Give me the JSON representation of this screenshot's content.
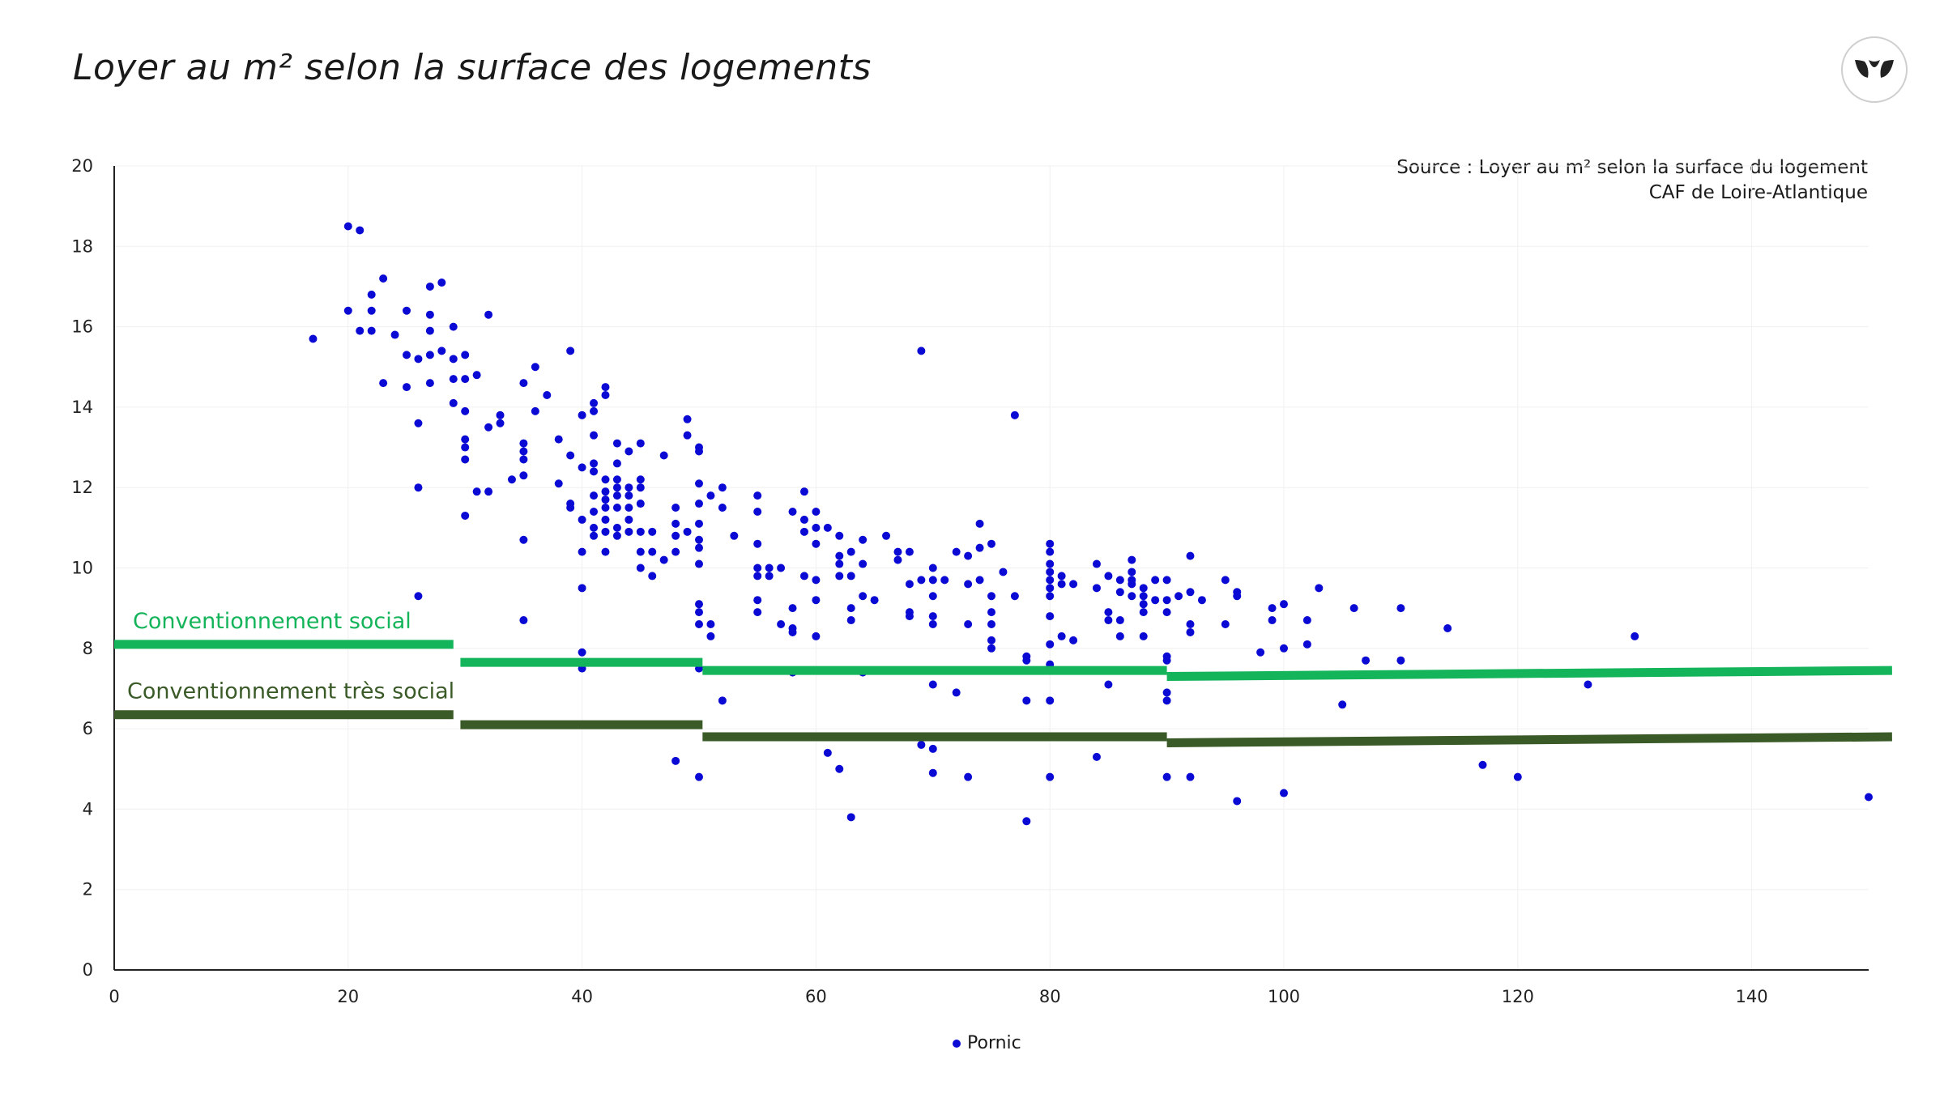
{
  "title": "Loyer au m² selon la surface des logements",
  "source_line1": "Source : Loyer au m² selon la surface du logement",
  "source_line2": "CAF de Loire-Atlantique",
  "logo_icon": "leaf-logo-icon",
  "colors": {
    "points": "#0a0ad4",
    "social": "#14b45a",
    "tres_social": "#3a5a27",
    "axis": "#222222",
    "grid": "#f0f0f0"
  },
  "chart_data": {
    "type": "scatter",
    "xlim": [
      0,
      150
    ],
    "ylim": [
      0,
      20
    ],
    "x_ticks": [
      0,
      20,
      40,
      60,
      80,
      100,
      120,
      140
    ],
    "y_ticks": [
      0,
      2,
      4,
      6,
      8,
      10,
      12,
      14,
      16,
      18,
      20
    ],
    "grid": true,
    "legend_position": "bottom-center",
    "series": [
      {
        "name": "Pornic",
        "type": "scatter",
        "points": [
          [
            17,
            15.7
          ],
          [
            20,
            18.5
          ],
          [
            21,
            18.4
          ],
          [
            20,
            16.4
          ],
          [
            21,
            15.9
          ],
          [
            22,
            16.8
          ],
          [
            22,
            16.4
          ],
          [
            22,
            15.9
          ],
          [
            23,
            17.2
          ],
          [
            23,
            14.6
          ],
          [
            24,
            15.8
          ],
          [
            25,
            16.4
          ],
          [
            25,
            15.3
          ],
          [
            25,
            14.5
          ],
          [
            26,
            15.2
          ],
          [
            26,
            13.6
          ],
          [
            26,
            12.0
          ],
          [
            26,
            9.3
          ],
          [
            27,
            17.0
          ],
          [
            27,
            16.3
          ],
          [
            27,
            15.9
          ],
          [
            27,
            15.3
          ],
          [
            27,
            14.6
          ],
          [
            28,
            17.1
          ],
          [
            28,
            15.4
          ],
          [
            29,
            16.0
          ],
          [
            29,
            15.2
          ],
          [
            29,
            14.7
          ],
          [
            29,
            14.1
          ],
          [
            30,
            15.3
          ],
          [
            30,
            14.7
          ],
          [
            30,
            13.9
          ],
          [
            30,
            13.2
          ],
          [
            30,
            13.0
          ],
          [
            30,
            12.7
          ],
          [
            30,
            11.3
          ],
          [
            31,
            14.8
          ],
          [
            31,
            11.9
          ],
          [
            32,
            16.3
          ],
          [
            32,
            13.5
          ],
          [
            32,
            11.9
          ],
          [
            33,
            13.8
          ],
          [
            33,
            13.6
          ],
          [
            34,
            12.2
          ],
          [
            35,
            14.6
          ],
          [
            35,
            13.1
          ],
          [
            35,
            12.9
          ],
          [
            35,
            12.3
          ],
          [
            35,
            12.7
          ],
          [
            35,
            10.7
          ],
          [
            35,
            8.7
          ],
          [
            36,
            15.0
          ],
          [
            36,
            13.9
          ],
          [
            37,
            14.3
          ],
          [
            38,
            13.2
          ],
          [
            38,
            12.1
          ],
          [
            39,
            15.4
          ],
          [
            39,
            12.8
          ],
          [
            39,
            11.6
          ],
          [
            39,
            11.5
          ],
          [
            40,
            13.8
          ],
          [
            40,
            12.5
          ],
          [
            40,
            11.2
          ],
          [
            40,
            10.4
          ],
          [
            40,
            9.5
          ],
          [
            40,
            7.9
          ],
          [
            40,
            7.5
          ],
          [
            41,
            14.1
          ],
          [
            41,
            13.9
          ],
          [
            41,
            13.3
          ],
          [
            41,
            12.6
          ],
          [
            41,
            12.4
          ],
          [
            41,
            11.8
          ],
          [
            41,
            11.4
          ],
          [
            41,
            11.0
          ],
          [
            41,
            10.8
          ],
          [
            42,
            14.5
          ],
          [
            42,
            14.3
          ],
          [
            42,
            12.2
          ],
          [
            42,
            11.9
          ],
          [
            42,
            11.7
          ],
          [
            42,
            11.5
          ],
          [
            42,
            11.2
          ],
          [
            42,
            10.9
          ],
          [
            42,
            10.4
          ],
          [
            43,
            13.1
          ],
          [
            43,
            12.6
          ],
          [
            43,
            12.2
          ],
          [
            43,
            12.0
          ],
          [
            43,
            11.8
          ],
          [
            43,
            11.5
          ],
          [
            43,
            11.0
          ],
          [
            43,
            10.8
          ],
          [
            44,
            12.9
          ],
          [
            44,
            12.0
          ],
          [
            44,
            11.8
          ],
          [
            44,
            11.5
          ],
          [
            44,
            11.2
          ],
          [
            44,
            10.9
          ],
          [
            45,
            13.1
          ],
          [
            45,
            12.2
          ],
          [
            45,
            12.0
          ],
          [
            45,
            11.6
          ],
          [
            45,
            10.9
          ],
          [
            45,
            10.4
          ],
          [
            45,
            10.0
          ],
          [
            46,
            10.9
          ],
          [
            46,
            10.4
          ],
          [
            46,
            9.8
          ],
          [
            47,
            12.8
          ],
          [
            47,
            10.2
          ],
          [
            48,
            11.5
          ],
          [
            48,
            11.1
          ],
          [
            48,
            10.8
          ],
          [
            48,
            10.4
          ],
          [
            48,
            5.2
          ],
          [
            49,
            13.7
          ],
          [
            49,
            13.3
          ],
          [
            49,
            10.9
          ],
          [
            50,
            13.0
          ],
          [
            50,
            12.9
          ],
          [
            50,
            12.1
          ],
          [
            50,
            11.6
          ],
          [
            50,
            11.1
          ],
          [
            50,
            10.7
          ],
          [
            50,
            10.5
          ],
          [
            50,
            10.1
          ],
          [
            50,
            9.1
          ],
          [
            50,
            8.9
          ],
          [
            50,
            8.6
          ],
          [
            50,
            7.5
          ],
          [
            50,
            4.8
          ],
          [
            51,
            11.8
          ],
          [
            51,
            8.6
          ],
          [
            51,
            8.3
          ],
          [
            52,
            12.0
          ],
          [
            52,
            11.5
          ],
          [
            52,
            6.7
          ],
          [
            53,
            10.8
          ],
          [
            55,
            11.8
          ],
          [
            55,
            11.4
          ],
          [
            55,
            10.6
          ],
          [
            55,
            10.0
          ],
          [
            55,
            9.8
          ],
          [
            55,
            9.2
          ],
          [
            55,
            8.9
          ],
          [
            56,
            10.0
          ],
          [
            56,
            9.8
          ],
          [
            57,
            10.0
          ],
          [
            57,
            8.6
          ],
          [
            58,
            11.4
          ],
          [
            58,
            9.0
          ],
          [
            58,
            8.5
          ],
          [
            58,
            8.4
          ],
          [
            58,
            7.4
          ],
          [
            59,
            11.9
          ],
          [
            59,
            11.2
          ],
          [
            59,
            10.9
          ],
          [
            59,
            9.8
          ],
          [
            60,
            11.4
          ],
          [
            60,
            11.0
          ],
          [
            60,
            10.6
          ],
          [
            60,
            9.7
          ],
          [
            60,
            9.2
          ],
          [
            60,
            8.3
          ],
          [
            61,
            11.0
          ],
          [
            61,
            5.4
          ],
          [
            62,
            10.8
          ],
          [
            62,
            10.3
          ],
          [
            62,
            10.1
          ],
          [
            62,
            9.8
          ],
          [
            62,
            5.0
          ],
          [
            63,
            10.4
          ],
          [
            63,
            9.8
          ],
          [
            63,
            9.0
          ],
          [
            63,
            8.7
          ],
          [
            63,
            3.8
          ],
          [
            64,
            10.7
          ],
          [
            64,
            10.1
          ],
          [
            64,
            9.3
          ],
          [
            64,
            7.4
          ],
          [
            65,
            9.2
          ],
          [
            66,
            10.8
          ],
          [
            67,
            10.4
          ],
          [
            67,
            10.2
          ],
          [
            68,
            10.4
          ],
          [
            68,
            9.6
          ],
          [
            68,
            8.9
          ],
          [
            68,
            8.8
          ],
          [
            69,
            15.4
          ],
          [
            69,
            9.7
          ],
          [
            69,
            5.6
          ],
          [
            70,
            10.0
          ],
          [
            70,
            9.7
          ],
          [
            70,
            9.3
          ],
          [
            70,
            8.8
          ],
          [
            70,
            8.6
          ],
          [
            70,
            7.1
          ],
          [
            70,
            5.5
          ],
          [
            70,
            4.9
          ],
          [
            71,
            9.7
          ],
          [
            72,
            10.4
          ],
          [
            72,
            6.9
          ],
          [
            73,
            10.3
          ],
          [
            73,
            9.6
          ],
          [
            73,
            8.6
          ],
          [
            73,
            4.8
          ],
          [
            74,
            11.1
          ],
          [
            74,
            10.5
          ],
          [
            74,
            9.7
          ],
          [
            75,
            10.6
          ],
          [
            75,
            9.3
          ],
          [
            75,
            8.9
          ],
          [
            75,
            8.6
          ],
          [
            75,
            8.2
          ],
          [
            75,
            8.0
          ],
          [
            76,
            9.9
          ],
          [
            77,
            13.8
          ],
          [
            77,
            9.3
          ],
          [
            78,
            7.8
          ],
          [
            78,
            7.7
          ],
          [
            78,
            6.7
          ],
          [
            78,
            3.7
          ],
          [
            80,
            10.6
          ],
          [
            80,
            10.4
          ],
          [
            80,
            10.1
          ],
          [
            80,
            9.9
          ],
          [
            80,
            9.7
          ],
          [
            80,
            9.5
          ],
          [
            80,
            9.3
          ],
          [
            80,
            8.8
          ],
          [
            80,
            8.1
          ],
          [
            80,
            7.6
          ],
          [
            80,
            6.7
          ],
          [
            80,
            4.8
          ],
          [
            81,
            9.8
          ],
          [
            81,
            9.6
          ],
          [
            81,
            8.3
          ],
          [
            82,
            9.6
          ],
          [
            82,
            8.2
          ],
          [
            84,
            10.1
          ],
          [
            84,
            9.5
          ],
          [
            84,
            5.3
          ],
          [
            85,
            9.8
          ],
          [
            85,
            8.9
          ],
          [
            85,
            8.7
          ],
          [
            85,
            7.1
          ],
          [
            86,
            9.7
          ],
          [
            86,
            9.4
          ],
          [
            86,
            8.7
          ],
          [
            86,
            8.3
          ],
          [
            87,
            10.2
          ],
          [
            87,
            9.9
          ],
          [
            87,
            9.7
          ],
          [
            87,
            9.6
          ],
          [
            87,
            9.3
          ],
          [
            88,
            9.5
          ],
          [
            88,
            9.3
          ],
          [
            88,
            9.1
          ],
          [
            88,
            8.9
          ],
          [
            88,
            8.3
          ],
          [
            89,
            9.7
          ],
          [
            89,
            9.2
          ],
          [
            90,
            9.7
          ],
          [
            90,
            9.2
          ],
          [
            90,
            8.9
          ],
          [
            90,
            7.8
          ],
          [
            90,
            7.7
          ],
          [
            90,
            6.9
          ],
          [
            90,
            6.7
          ],
          [
            90,
            4.8
          ],
          [
            91,
            9.3
          ],
          [
            92,
            10.3
          ],
          [
            92,
            9.4
          ],
          [
            92,
            8.6
          ],
          [
            92,
            8.4
          ],
          [
            92,
            4.8
          ],
          [
            93,
            9.2
          ],
          [
            95,
            9.7
          ],
          [
            95,
            8.6
          ],
          [
            96,
            9.4
          ],
          [
            96,
            9.3
          ],
          [
            96,
            4.2
          ],
          [
            98,
            7.9
          ],
          [
            99,
            9.0
          ],
          [
            99,
            8.7
          ],
          [
            100,
            9.1
          ],
          [
            100,
            8.0
          ],
          [
            100,
            4.4
          ],
          [
            102,
            8.7
          ],
          [
            102,
            8.1
          ],
          [
            103,
            9.5
          ],
          [
            105,
            6.6
          ],
          [
            106,
            9.0
          ],
          [
            107,
            7.7
          ],
          [
            110,
            9.0
          ],
          [
            110,
            7.7
          ],
          [
            114,
            8.5
          ],
          [
            117,
            5.1
          ],
          [
            120,
            4.8
          ],
          [
            126,
            7.1
          ],
          [
            130,
            8.3
          ],
          [
            150,
            4.3
          ]
        ]
      }
    ],
    "reference_lines": [
      {
        "label": "Conventionnement social",
        "segments": [
          {
            "x": [
              0,
              29
            ],
            "y": [
              8.1,
              8.1
            ]
          },
          {
            "x": [
              29.6,
              50.3
            ],
            "y": [
              7.65,
              7.65
            ]
          },
          {
            "x": [
              50.3,
              90
            ],
            "y": [
              7.45,
              7.45
            ]
          },
          {
            "x": [
              90,
              152
            ],
            "y": [
              7.3,
              7.45
            ]
          }
        ]
      },
      {
        "label": "Conventionnement très social",
        "segments": [
          {
            "x": [
              0,
              29
            ],
            "y": [
              6.35,
              6.35
            ]
          },
          {
            "x": [
              29.6,
              50.3
            ],
            "y": [
              6.1,
              6.1
            ]
          },
          {
            "x": [
              50.3,
              90
            ],
            "y": [
              5.8,
              5.8
            ]
          },
          {
            "x": [
              90,
              152
            ],
            "y": [
              5.65,
              5.8
            ]
          }
        ]
      }
    ]
  }
}
